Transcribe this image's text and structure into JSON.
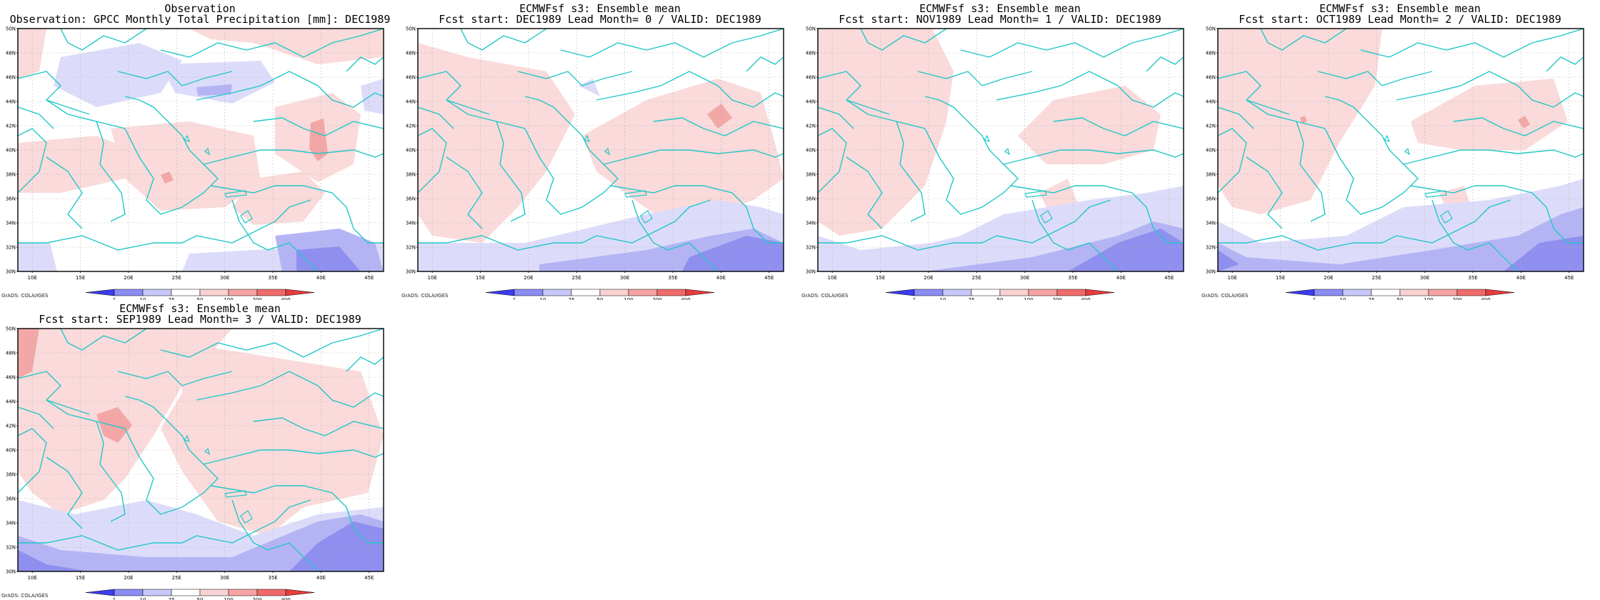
{
  "figure": {
    "credit": "GrADS: COLA/IGES",
    "lon_ticks": [
      "10E",
      "15E",
      "20E",
      "25E",
      "30E",
      "35E",
      "40E",
      "45E"
    ],
    "lat_ticks": [
      "30N",
      "32N",
      "34N",
      "36N",
      "38N",
      "40N",
      "42N",
      "44N",
      "46N",
      "48N",
      "50N"
    ],
    "colorbar": {
      "labels": [
        "1",
        "10",
        "25",
        "50",
        "100",
        "200",
        "400"
      ],
      "colors": [
        "#3c3cf0",
        "#8c8cf5",
        "#c8c8f8",
        "#ffffff",
        "#f9d3d3",
        "#f5a3a3",
        "#ef6b6b",
        "#e83c3c"
      ]
    },
    "colors": {
      "coast": "#22c7c7",
      "neg_light": "#dcdcfa",
      "neg_med": "#b4b4f5",
      "neg_dark": "#8f8fef",
      "pos_light": "#fadada",
      "pos_med": "#f3a7a7",
      "pos_dark": "#ef8585"
    }
  },
  "panels": [
    {
      "title1": "Observation",
      "title2": "Observation: GPCC Monthly Total Precipitation [mm]: DEC1989"
    },
    {
      "title1": "ECMWFsf s3: Ensemble mean",
      "title2": "Fcst start: DEC1989  Lead Month= 0 / VALID: DEC1989"
    },
    {
      "title1": "ECMWFsf s3: Ensemble mean",
      "title2": "Fcst start: NOV1989  Lead Month= 1 / VALID: DEC1989"
    },
    {
      "title1": "ECMWFsf s3: Ensemble mean",
      "title2": "Fcst start: OCT1989  Lead Month= 2 / VALID: DEC1989"
    },
    {
      "title1": "ECMWFsf s3: Ensemble mean",
      "title2": "Fcst start: SEP1989  Lead Month= 3 / VALID: DEC1989"
    }
  ]
}
